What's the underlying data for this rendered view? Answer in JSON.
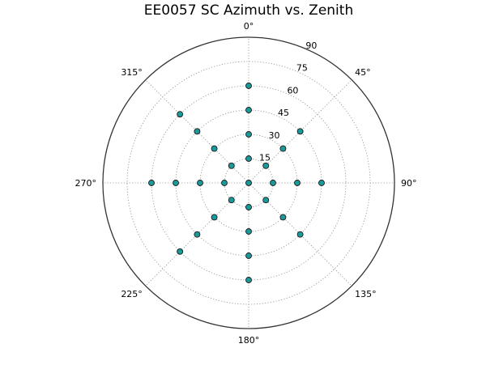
{
  "chart_data": {
    "type": "scatter",
    "projection": "polar",
    "title": "EE0057 SC Azimuth vs. Zenith",
    "theta_zero_location": "top",
    "theta_direction": "clockwise",
    "r_range": [
      0,
      90
    ],
    "grid": true,
    "theta_tick_values": [
      0,
      45,
      90,
      135,
      180,
      225,
      270,
      315
    ],
    "theta_tick_labels": [
      "0°",
      "45°",
      "90°",
      "135°",
      "180°",
      "225°",
      "270°",
      "315°"
    ],
    "r_tick_values": [
      15,
      30,
      45,
      60,
      75,
      90
    ],
    "r_tick_labels": [
      "15",
      "30",
      "45",
      "60",
      "75",
      "90"
    ],
    "marker_color": "#1a9a9a",
    "series": [
      {
        "points": [
          {
            "az": 0,
            "zen": 0
          },
          {
            "az": 0,
            "zen": 15
          },
          {
            "az": 0,
            "zen": 30
          },
          {
            "az": 0,
            "zen": 45
          },
          {
            "az": 0,
            "zen": 60
          },
          {
            "az": 45,
            "zen": 15
          },
          {
            "az": 45,
            "zen": 30
          },
          {
            "az": 45,
            "zen": 45
          },
          {
            "az": 90,
            "zen": 15
          },
          {
            "az": 90,
            "zen": 30
          },
          {
            "az": 90,
            "zen": 45
          },
          {
            "az": 135,
            "zen": 15
          },
          {
            "az": 135,
            "zen": 30
          },
          {
            "az": 135,
            "zen": 45
          },
          {
            "az": 180,
            "zen": 15
          },
          {
            "az": 180,
            "zen": 30
          },
          {
            "az": 180,
            "zen": 45
          },
          {
            "az": 180,
            "zen": 60
          },
          {
            "az": 225,
            "zen": 15
          },
          {
            "az": 225,
            "zen": 30
          },
          {
            "az": 225,
            "zen": 45
          },
          {
            "az": 225,
            "zen": 60
          },
          {
            "az": 270,
            "zen": 15
          },
          {
            "az": 270,
            "zen": 30
          },
          {
            "az": 270,
            "zen": 45
          },
          {
            "az": 270,
            "zen": 60
          },
          {
            "az": 315,
            "zen": 15
          },
          {
            "az": 315,
            "zen": 30
          },
          {
            "az": 315,
            "zen": 45
          },
          {
            "az": 315,
            "zen": 60
          }
        ]
      }
    ]
  }
}
